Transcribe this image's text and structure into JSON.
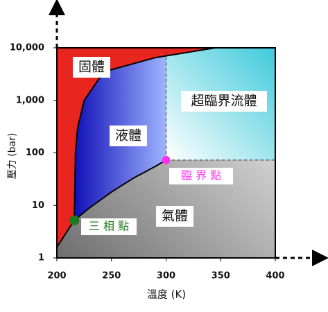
{
  "chart_data": {
    "type": "phase-diagram",
    "xlabel": "溫度 (K)",
    "ylabel": "壓力 (bar)",
    "xlim": [
      200,
      400
    ],
    "xticks": [
      200,
      250,
      300,
      350,
      400
    ],
    "ylim": [
      1,
      10000
    ],
    "log_y": true,
    "yticks": [
      1,
      10,
      100,
      {
        "value": 1000,
        "label": "1,000"
      },
      {
        "value": 10000,
        "label": "10,000"
      }
    ],
    "curves": [
      {
        "x": [
          200,
          216
        ],
        "values": [
          1.6,
          5.2
        ]
      },
      {
        "x": [
          216,
          217,
          219,
          225,
          243,
          290,
          345
        ],
        "values": [
          5.2,
          100,
          300,
          1000,
          3500,
          6500,
          10000
        ]
      },
      {
        "x": [
          216,
          230,
          250,
          270,
          290,
          300
        ],
        "values": [
          5.2,
          9,
          18,
          33,
          55,
          73
        ]
      }
    ],
    "triple_point": {
      "x": 216,
      "y": 5.2,
      "color": "#1e7a1e",
      "label": "三 相 點"
    },
    "critical_point": {
      "x": 300,
      "y": 73,
      "color": "#ff33ee",
      "label": "臨 界 點"
    },
    "regions": [
      "固體",
      "液體",
      "超臨界流體",
      "氣體"
    ]
  }
}
